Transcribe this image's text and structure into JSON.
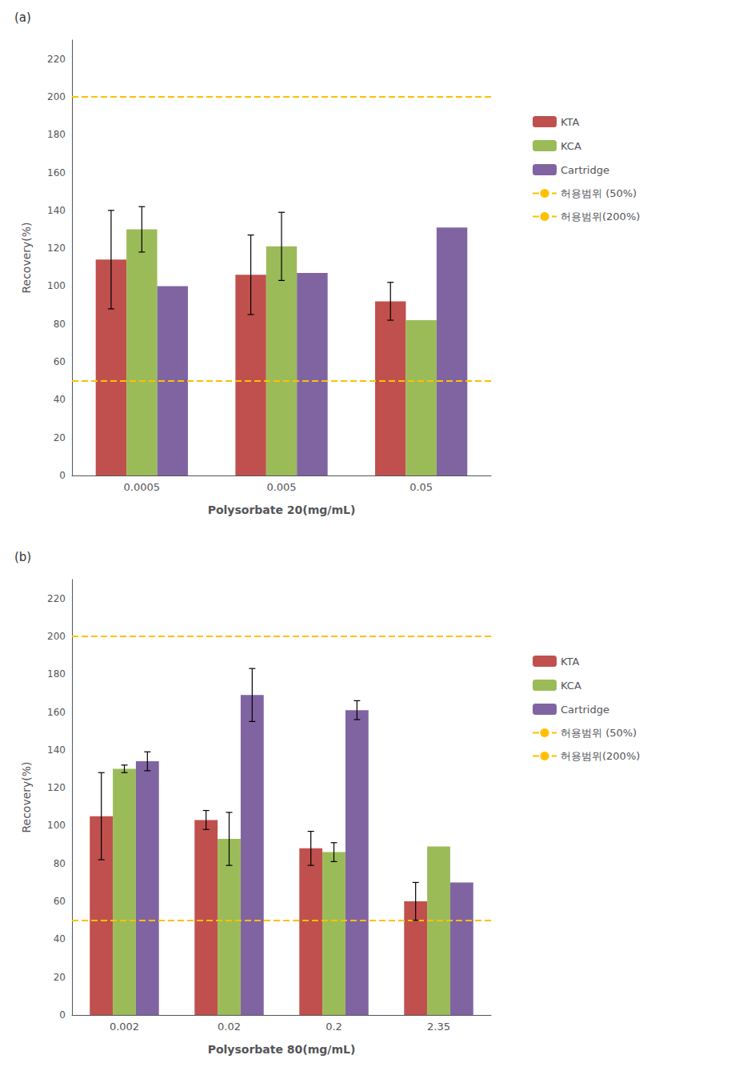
{
  "chart_data": [
    {
      "type": "bar",
      "annotations": [
        "(a)"
      ],
      "xlabel": "Polysorbate 20(mg/mL)",
      "ylabel": "Recovery(%)",
      "categories": [
        "0.0005",
        "0.005",
        "0.05"
      ],
      "series": [
        {
          "name": "KTA",
          "type": "bar",
          "color": "#C0504D",
          "values": [
            114,
            106,
            92
          ],
          "errors": [
            26,
            21,
            10
          ]
        },
        {
          "name": "KCA",
          "type": "bar",
          "color": "#9BBB59",
          "values": [
            130,
            121,
            82
          ],
          "errors": [
            12,
            18,
            0
          ]
        },
        {
          "name": "Cartridge",
          "type": "bar",
          "color": "#8064A2",
          "values": [
            100,
            107,
            131
          ],
          "errors": [
            0,
            0,
            0
          ]
        },
        {
          "name": "허용범위 (50%)",
          "type": "hline",
          "color": "#FFC000",
          "line_style": "dashed",
          "value": 50
        },
        {
          "name": "허용범위(200%)",
          "type": "hline",
          "color": "#FFC000",
          "line_style": "dashed",
          "value": 200
        }
      ],
      "ylim": [
        0,
        230
      ],
      "yticks": [
        0,
        20,
        40,
        60,
        80,
        100,
        120,
        140,
        160,
        180,
        200,
        220
      ],
      "grid": false,
      "legend": "right"
    },
    {
      "type": "bar",
      "annotations": [
        "(b)"
      ],
      "xlabel": "Polysorbate 80(mg/mL)",
      "ylabel": "Recovery(%)",
      "categories": [
        "0.002",
        "0.02",
        "0.2",
        "2.35"
      ],
      "series": [
        {
          "name": "KTA",
          "type": "bar",
          "color": "#C0504D",
          "values": [
            105,
            103,
            88,
            60
          ],
          "errors": [
            23,
            5,
            9,
            10
          ]
        },
        {
          "name": "KCA",
          "type": "bar",
          "color": "#9BBB59",
          "values": [
            130,
            93,
            86,
            89
          ],
          "errors": [
            2,
            14,
            5,
            0
          ]
        },
        {
          "name": "Cartridge",
          "type": "bar",
          "color": "#8064A2",
          "values": [
            134,
            169,
            161,
            70
          ],
          "errors": [
            5,
            14,
            5,
            0
          ]
        },
        {
          "name": "허용범위 (50%)",
          "type": "hline",
          "color": "#FFC000",
          "line_style": "dashed",
          "value": 50
        },
        {
          "name": "허용범위(200%)",
          "type": "hline",
          "color": "#FFC000",
          "line_style": "dashed",
          "value": 200
        }
      ],
      "ylim": [
        0,
        230
      ],
      "yticks": [
        0,
        20,
        40,
        60,
        80,
        100,
        120,
        140,
        160,
        180,
        200,
        220
      ],
      "grid": false,
      "legend": "right"
    }
  ]
}
